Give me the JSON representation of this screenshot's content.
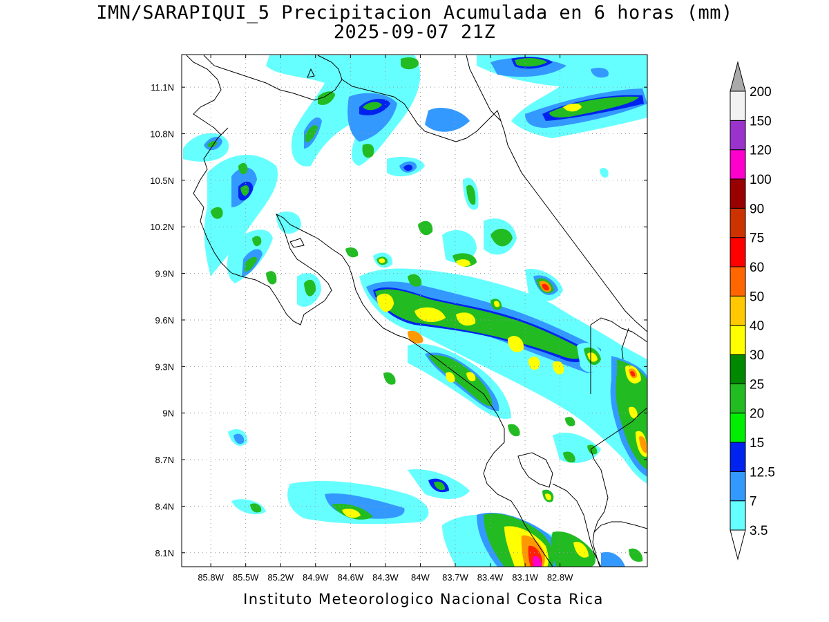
{
  "title": {
    "line1": "IMN/SARAPIQUI_5 Precipitacion Acumulada en 6 horas (mm)",
    "line2": "2025-09-07 21Z"
  },
  "footer": "Instituto Meteorologico Nacional Costa Rica",
  "map": {
    "lon_range": [
      -86.05,
      -82.05
    ],
    "lat_range": [
      8.01,
      11.31
    ],
    "lon_ticks": [
      {
        "value": -85.8,
        "label": "85.8W"
      },
      {
        "value": -85.5,
        "label": "85.5W"
      },
      {
        "value": -85.2,
        "label": "85.2W"
      },
      {
        "value": -84.9,
        "label": "84.9W"
      },
      {
        "value": -84.6,
        "label": "84.6W"
      },
      {
        "value": -84.3,
        "label": "84.3W"
      },
      {
        "value": -84.0,
        "label": "84W"
      },
      {
        "value": -83.7,
        "label": "83.7W"
      },
      {
        "value": -83.4,
        "label": "83.4W"
      },
      {
        "value": -83.1,
        "label": "83.1W"
      },
      {
        "value": -82.8,
        "label": "82.8W"
      }
    ],
    "lat_ticks": [
      {
        "value": 11.1,
        "label": "11.1N"
      },
      {
        "value": 10.8,
        "label": "10.8N"
      },
      {
        "value": 10.5,
        "label": "10.5N"
      },
      {
        "value": 10.2,
        "label": "10.2N"
      },
      {
        "value": 9.9,
        "label": "9.9N"
      },
      {
        "value": 9.6,
        "label": "9.6N"
      },
      {
        "value": 9.3,
        "label": "9.3N"
      },
      {
        "value": 9.0,
        "label": "9N"
      },
      {
        "value": 8.7,
        "label": "8.7N"
      },
      {
        "value": 8.4,
        "label": "8.4N"
      },
      {
        "value": 8.1,
        "label": "8.1N"
      }
    ],
    "grid": true
  },
  "colorbar": {
    "labels": [
      "3.5",
      "7",
      "12.5",
      "15",
      "20",
      "25",
      "30",
      "40",
      "50",
      "60",
      "75",
      "90",
      "100",
      "120",
      "150",
      "200"
    ],
    "colors": [
      "#66ffff",
      "#3399ff",
      "#0022ee",
      "#00ee00",
      "#22bb22",
      "#008800",
      "#ffff00",
      "#ffc800",
      "#ff6600",
      "#ff0000",
      "#cc3300",
      "#990000",
      "#ff00cc",
      "#9933cc",
      "#f2f2f2"
    ],
    "over_color": "#aaaaaa",
    "under_color": "#ffffff"
  },
  "legend_colors": {
    "light_cyan": "#66ffff",
    "blue": "#3399ff",
    "dark_blue": "#0022ee",
    "green": "#22cc22",
    "yellow": "#ffff00",
    "orange": "#ff9900",
    "red": "#ff2200",
    "magenta": "#ff00cc"
  }
}
